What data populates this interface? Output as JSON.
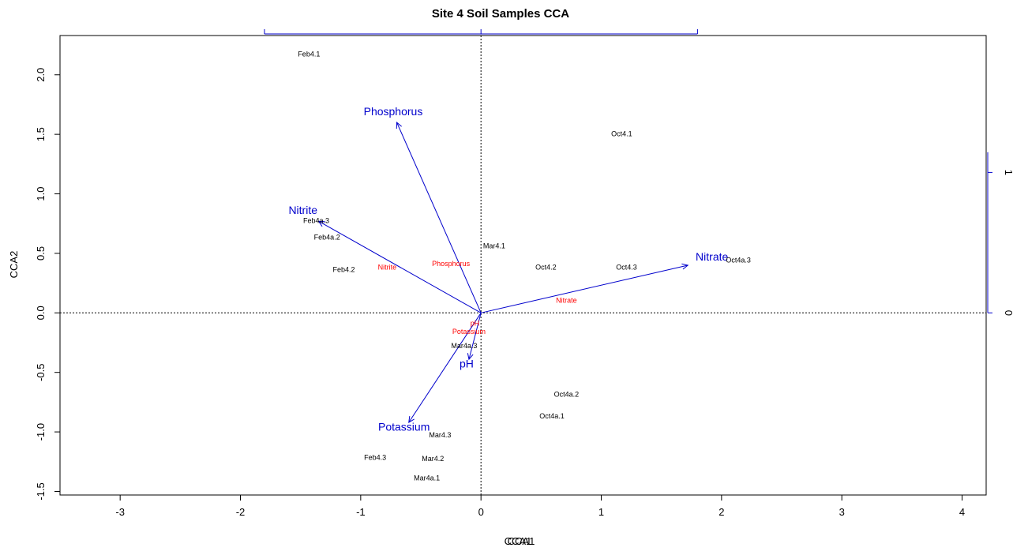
{
  "chart_data": {
    "type": "scatter",
    "title": "Site 4 Soil Samples CCA",
    "xlabel": "CCA1",
    "xlabel_overlay": "CCA1",
    "ylabel": "CCA2",
    "xlim": [
      -3.5,
      4.2
    ],
    "ylim": [
      -1.53,
      2.33
    ],
    "x_ticks": [
      -3,
      -2,
      -1,
      0,
      1,
      2,
      3,
      4
    ],
    "y_ticks": [
      -1.5,
      -1.0,
      -0.5,
      0.0,
      0.5,
      1.0,
      1.5,
      2.0
    ],
    "y_tick_labels": [
      "-1.5",
      "-1.0",
      "-0.5",
      "0.0",
      "0.5",
      "1.0",
      "1.5",
      "2.0"
    ],
    "right_axis_ticks": [
      0,
      1
    ],
    "site_labels": [
      {
        "label": "Feb4.1",
        "x": -1.43,
        "y": 2.17
      },
      {
        "label": "Oct4.1",
        "x": 1.17,
        "y": 1.5
      },
      {
        "label": "Feb4a.3",
        "x": -1.37,
        "y": 0.77
      },
      {
        "label": "Feb4a.2",
        "x": -1.28,
        "y": 0.63
      },
      {
        "label": "Feb4.2",
        "x": -1.14,
        "y": 0.36
      },
      {
        "label": "Mar4.1",
        "x": 0.11,
        "y": 0.56
      },
      {
        "label": "Oct4.2",
        "x": 0.54,
        "y": 0.38
      },
      {
        "label": "Oct4.3",
        "x": 1.21,
        "y": 0.38
      },
      {
        "label": "Oct4a.3",
        "x": 2.14,
        "y": 0.44
      },
      {
        "label": "Mar4a.3",
        "x": -0.14,
        "y": -0.28
      },
      {
        "label": "Oct4a.2",
        "x": 0.71,
        "y": -0.69
      },
      {
        "label": "Oct4a.1",
        "x": 0.59,
        "y": -0.87
      },
      {
        "label": "Mar4.3",
        "x": -0.34,
        "y": -1.03
      },
      {
        "label": "Feb4.3",
        "x": -0.88,
        "y": -1.22
      },
      {
        "label": "Mar4.2",
        "x": -0.4,
        "y": -1.23
      },
      {
        "label": "Mar4a.1",
        "x": -0.45,
        "y": -1.39
      }
    ],
    "species_labels": [
      {
        "label": "Phosphorus",
        "x": -0.25,
        "y": 0.41
      },
      {
        "label": "Nitrite",
        "x": -0.78,
        "y": 0.38
      },
      {
        "label": "Nitrate",
        "x": 0.71,
        "y": 0.1
      },
      {
        "label": "pH",
        "x": -0.05,
        "y": -0.09
      },
      {
        "label": "Potassium",
        "x": -0.1,
        "y": -0.16
      }
    ],
    "biplot_arrows": [
      {
        "label": "Phosphorus",
        "x": -0.7,
        "y": 1.6,
        "label_x": -0.73,
        "label_y": 1.66
      },
      {
        "label": "Nitrite",
        "x": -1.35,
        "y": 0.77,
        "label_x": -1.48,
        "label_y": 0.83
      },
      {
        "label": "Nitrate",
        "x": 1.72,
        "y": 0.4,
        "label_x": 1.92,
        "label_y": 0.44
      },
      {
        "label": "pH",
        "x": -0.1,
        "y": -0.39,
        "label_x": -0.12,
        "label_y": -0.46
      },
      {
        "label": "Potassium",
        "x": -0.6,
        "y": -0.92,
        "label_x": -0.64,
        "label_y": -0.99
      }
    ],
    "colors": {
      "sites": "#000000",
      "species": "#ff0000",
      "arrows": "#0000cc",
      "axis": "#000000"
    },
    "grid": false
  }
}
